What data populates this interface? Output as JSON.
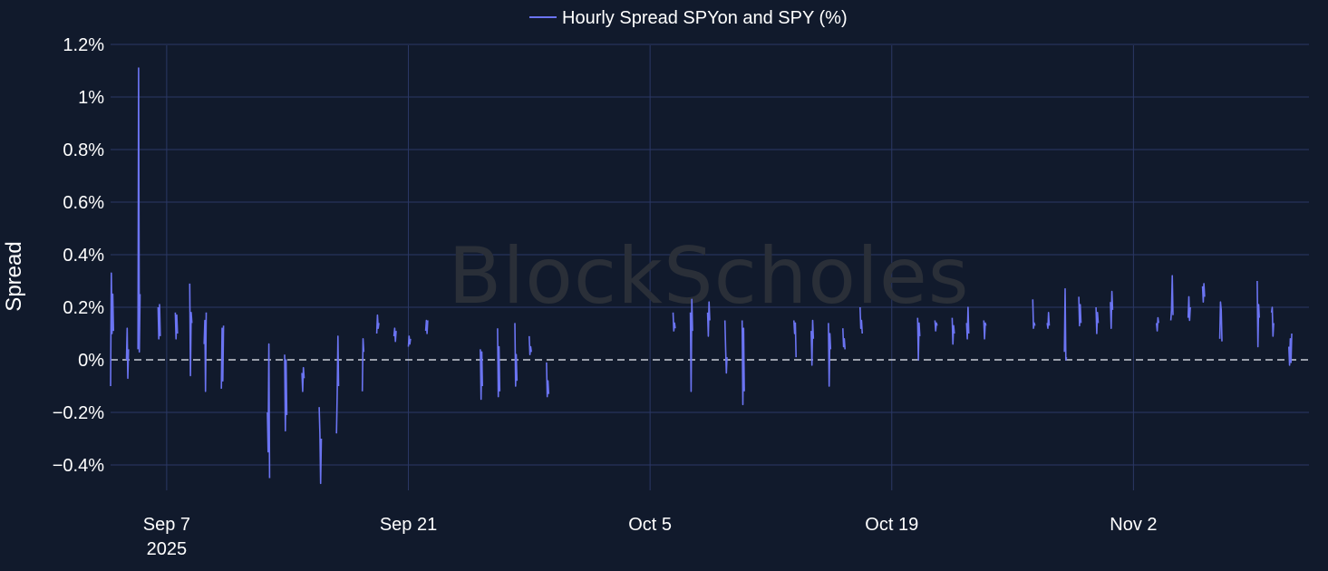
{
  "watermark": "BlockScholes",
  "chart_data": {
    "type": "line",
    "ylabel": "Spread",
    "ylim": [
      -0.5,
      1.2
    ],
    "y_ticks": [
      {
        "value": 1.2,
        "label": "1.2%"
      },
      {
        "value": 1.0,
        "label": "1%"
      },
      {
        "value": 0.8,
        "label": "0.8%"
      },
      {
        "value": 0.6,
        "label": "0.6%"
      },
      {
        "value": 0.4,
        "label": "0.4%"
      },
      {
        "value": 0.2,
        "label": "0.2%"
      },
      {
        "value": 0.0,
        "label": "0%"
      },
      {
        "value": -0.2,
        "label": "−0.2%"
      },
      {
        "value": -0.4,
        "label": "−0.4%"
      }
    ],
    "x_ticks": [
      {
        "date": "2025-09-07",
        "label": "Sep 7",
        "sublabel": "2025"
      },
      {
        "date": "2025-09-21",
        "label": "Sep 21",
        "sublabel": ""
      },
      {
        "date": "2025-10-05",
        "label": "Oct 5",
        "sublabel": ""
      },
      {
        "date": "2025-10-19",
        "label": "Oct 19",
        "sublabel": ""
      },
      {
        "date": "2025-11-02",
        "label": "Nov 2",
        "sublabel": ""
      }
    ],
    "xlim": [
      "2025-09-03T18:00",
      "2025-11-12T04:00"
    ],
    "grid": true,
    "zero_line": {
      "value": 0,
      "style": "dashed"
    },
    "legend_position": "top-center",
    "series": [
      {
        "name": "Hourly Spread SPYon and SPY (%)",
        "color": "#6b74f2",
        "segments": [
          [
            [
              "2025-09-03T18:00",
              -0.1
            ],
            [
              "2025-09-03T19:00",
              0.33
            ],
            [
              "2025-09-03T20:00",
              0.1
            ],
            [
              "2025-09-03T21:00",
              0.25
            ],
            [
              "2025-09-03T22:00",
              0.11
            ]
          ],
          [
            [
              "2025-09-04T16:00",
              0.0
            ],
            [
              "2025-09-04T17:00",
              0.12
            ],
            [
              "2025-09-04T18:00",
              -0.07
            ],
            [
              "2025-09-04T19:00",
              0.04
            ]
          ],
          [
            [
              "2025-09-05T08:00",
              0.04
            ],
            [
              "2025-09-05T09:00",
              1.11
            ],
            [
              "2025-09-05T10:00",
              0.03
            ],
            [
              "2025-09-05T11:00",
              0.25
            ]
          ],
          [
            [
              "2025-09-06T12:00",
              0.2
            ],
            [
              "2025-09-06T13:00",
              0.08
            ],
            [
              "2025-09-06T14:00",
              0.21
            ],
            [
              "2025-09-06T15:00",
              0.09
            ]
          ],
          [
            [
              "2025-09-07T12:00",
              0.18
            ],
            [
              "2025-09-07T13:00",
              0.08
            ],
            [
              "2025-09-07T14:00",
              0.17
            ],
            [
              "2025-09-07T15:00",
              0.1
            ]
          ],
          [
            [
              "2025-09-08T08:00",
              0.29
            ],
            [
              "2025-09-08T09:00",
              -0.06
            ],
            [
              "2025-09-08T10:00",
              0.18
            ],
            [
              "2025-09-08T11:00",
              0.14
            ]
          ],
          [
            [
              "2025-09-09T04:00",
              0.06
            ],
            [
              "2025-09-09T05:00",
              0.15
            ],
            [
              "2025-09-09T06:00",
              -0.12
            ],
            [
              "2025-09-09T07:00",
              0.18
            ]
          ],
          [
            [
              "2025-09-10T04:00",
              -0.11
            ],
            [
              "2025-09-10T05:00",
              0.12
            ],
            [
              "2025-09-10T06:00",
              -0.08
            ],
            [
              "2025-09-10T07:00",
              0.13
            ]
          ],
          [
            [
              "2025-09-12T20:00",
              -0.2
            ],
            [
              "2025-09-12T21:00",
              -0.35
            ],
            [
              "2025-09-12T22:00",
              0.06
            ],
            [
              "2025-09-12T23:00",
              -0.45
            ]
          ],
          [
            [
              "2025-09-13T20:00",
              0.02
            ],
            [
              "2025-09-13T21:00",
              -0.27
            ],
            [
              "2025-09-13T22:00",
              0.0
            ],
            [
              "2025-09-13T23:00",
              -0.21
            ]
          ],
          [
            [
              "2025-09-14T20:00",
              -0.05
            ],
            [
              "2025-09-14T21:00",
              -0.12
            ],
            [
              "2025-09-14T22:00",
              -0.03
            ],
            [
              "2025-09-14T23:00",
              -0.07
            ]
          ],
          [
            [
              "2025-09-15T20:00",
              -0.18
            ],
            [
              "2025-09-15T21:00",
              -0.28
            ],
            [
              "2025-09-15T22:00",
              -0.47
            ],
            [
              "2025-09-15T23:00",
              -0.3
            ]
          ],
          [
            [
              "2025-09-16T20:00",
              -0.28
            ],
            [
              "2025-09-16T21:00",
              -0.13
            ],
            [
              "2025-09-16T22:00",
              0.09
            ],
            [
              "2025-09-16T23:00",
              -0.1
            ]
          ],
          [
            [
              "2025-09-18T08:00",
              -0.12
            ],
            [
              "2025-09-18T09:00",
              0.08
            ],
            [
              "2025-09-18T10:00",
              0.03
            ]
          ],
          [
            [
              "2025-09-19T04:00",
              0.1
            ],
            [
              "2025-09-19T05:00",
              0.17
            ],
            [
              "2025-09-19T06:00",
              0.12
            ],
            [
              "2025-09-19T07:00",
              0.14
            ]
          ],
          [
            [
              "2025-09-20T04:00",
              0.09
            ],
            [
              "2025-09-20T05:00",
              0.12
            ],
            [
              "2025-09-20T06:00",
              0.07
            ],
            [
              "2025-09-20T07:00",
              0.11
            ]
          ],
          [
            [
              "2025-09-21T00:00",
              0.05
            ],
            [
              "2025-09-21T01:00",
              0.09
            ],
            [
              "2025-09-21T02:00",
              0.06
            ],
            [
              "2025-09-21T03:00",
              0.08
            ]
          ],
          [
            [
              "2025-09-22T00:00",
              0.11
            ],
            [
              "2025-09-22T01:00",
              0.15
            ],
            [
              "2025-09-22T02:00",
              0.1
            ],
            [
              "2025-09-22T03:00",
              0.15
            ]
          ],
          [
            [
              "2025-09-25T04:00",
              0.04
            ],
            [
              "2025-09-25T05:00",
              -0.15
            ],
            [
              "2025-09-25T06:00",
              0.03
            ],
            [
              "2025-09-25T07:00",
              -0.1
            ]
          ],
          [
            [
              "2025-09-26T04:00",
              0.12
            ],
            [
              "2025-09-26T05:00",
              -0.14
            ],
            [
              "2025-09-26T06:00",
              0.05
            ],
            [
              "2025-09-26T07:00",
              -0.12
            ]
          ],
          [
            [
              "2025-09-27T04:00",
              0.14
            ],
            [
              "2025-09-27T05:00",
              -0.1
            ],
            [
              "2025-09-27T06:00",
              0.02
            ],
            [
              "2025-09-27T07:00",
              -0.08
            ]
          ],
          [
            [
              "2025-09-28T00:00",
              0.09
            ],
            [
              "2025-09-28T01:00",
              0.02
            ],
            [
              "2025-09-28T02:00",
              0.05
            ],
            [
              "2025-09-28T03:00",
              0.03
            ]
          ],
          [
            [
              "2025-09-29T00:00",
              -0.01
            ],
            [
              "2025-09-29T01:00",
              -0.14
            ],
            [
              "2025-09-29T02:00",
              -0.08
            ],
            [
              "2025-09-29T03:00",
              -0.13
            ]
          ],
          [
            [
              "2025-10-06T08:00",
              0.18
            ],
            [
              "2025-10-06T09:00",
              0.11
            ],
            [
              "2025-10-06T10:00",
              0.14
            ],
            [
              "2025-10-06T11:00",
              0.12
            ]
          ],
          [
            [
              "2025-10-07T08:00",
              0.18
            ],
            [
              "2025-10-07T09:00",
              -0.12
            ],
            [
              "2025-10-07T10:00",
              0.23
            ],
            [
              "2025-10-07T11:00",
              0.11
            ]
          ],
          [
            [
              "2025-10-08T08:00",
              0.18
            ],
            [
              "2025-10-08T09:00",
              0.09
            ],
            [
              "2025-10-08T10:00",
              0.22
            ],
            [
              "2025-10-08T11:00",
              0.15
            ]
          ],
          [
            [
              "2025-10-09T08:00",
              0.15
            ],
            [
              "2025-10-09T09:00",
              0.04
            ],
            [
              "2025-10-09T10:00",
              -0.05
            ],
            [
              "2025-10-09T11:00",
              0.01
            ]
          ],
          [
            [
              "2025-10-10T08:00",
              0.15
            ],
            [
              "2025-10-10T09:00",
              -0.17
            ],
            [
              "2025-10-10T10:00",
              0.12
            ],
            [
              "2025-10-10T11:00",
              -0.12
            ]
          ],
          [
            [
              "2025-10-13T08:00",
              0.15
            ],
            [
              "2025-10-13T09:00",
              0.1
            ],
            [
              "2025-10-13T10:00",
              0.14
            ],
            [
              "2025-10-13T11:00",
              0.01
            ]
          ],
          [
            [
              "2025-10-14T08:00",
              0.11
            ],
            [
              "2025-10-14T09:00",
              -0.02
            ],
            [
              "2025-10-14T10:00",
              0.15
            ],
            [
              "2025-10-14T11:00",
              0.08
            ]
          ],
          [
            [
              "2025-10-15T08:00",
              0.14
            ],
            [
              "2025-10-15T09:00",
              -0.1
            ],
            [
              "2025-10-15T10:00",
              0.1
            ],
            [
              "2025-10-15T11:00",
              0.04
            ]
          ],
          [
            [
              "2025-10-16T04:00",
              0.12
            ],
            [
              "2025-10-16T05:00",
              0.05
            ],
            [
              "2025-10-16T06:00",
              0.08
            ],
            [
              "2025-10-16T07:00",
              0.04
            ]
          ],
          [
            [
              "2025-10-17T04:00",
              0.2
            ],
            [
              "2025-10-17T05:00",
              0.12
            ],
            [
              "2025-10-17T06:00",
              0.15
            ],
            [
              "2025-10-17T07:00",
              0.1
            ]
          ],
          [
            [
              "2025-10-20T12:00",
              0.16
            ],
            [
              "2025-10-20T13:00",
              0.0
            ],
            [
              "2025-10-20T14:00",
              0.14
            ],
            [
              "2025-10-20T15:00",
              0.09
            ]
          ],
          [
            [
              "2025-10-21T12:00",
              0.15
            ],
            [
              "2025-10-21T13:00",
              0.11
            ],
            [
              "2025-10-21T14:00",
              0.14
            ],
            [
              "2025-10-21T15:00",
              0.13
            ]
          ],
          [
            [
              "2025-10-22T12:00",
              0.16
            ],
            [
              "2025-10-22T13:00",
              0.06
            ],
            [
              "2025-10-22T14:00",
              0.13
            ],
            [
              "2025-10-22T15:00",
              0.1
            ]
          ],
          [
            [
              "2025-10-23T08:00",
              0.14
            ],
            [
              "2025-10-23T09:00",
              0.08
            ],
            [
              "2025-10-23T10:00",
              0.2
            ],
            [
              "2025-10-23T11:00",
              0.1
            ]
          ],
          [
            [
              "2025-10-24T08:00",
              0.15
            ],
            [
              "2025-10-24T09:00",
              0.08
            ],
            [
              "2025-10-24T10:00",
              0.14
            ],
            [
              "2025-10-24T11:00",
              0.13
            ]
          ],
          [
            [
              "2025-10-27T04:00",
              0.23
            ],
            [
              "2025-10-27T05:00",
              0.12
            ],
            [
              "2025-10-27T06:00",
              0.14
            ],
            [
              "2025-10-27T07:00",
              0.13
            ]
          ],
          [
            [
              "2025-10-28T00:00",
              0.14
            ],
            [
              "2025-10-28T01:00",
              0.12
            ],
            [
              "2025-10-28T02:00",
              0.18
            ],
            [
              "2025-10-28T03:00",
              0.13
            ]
          ],
          [
            [
              "2025-10-29T00:00",
              0.03
            ],
            [
              "2025-10-29T01:00",
              0.27
            ],
            [
              "2025-10-29T02:00",
              0.0
            ],
            [
              "2025-10-29T03:00",
              0.01
            ]
          ],
          [
            [
              "2025-10-29T20:00",
              0.24
            ],
            [
              "2025-10-29T21:00",
              0.13
            ],
            [
              "2025-10-29T22:00",
              0.21
            ],
            [
              "2025-10-29T23:00",
              0.14
            ]
          ],
          [
            [
              "2025-10-30T20:00",
              0.2
            ],
            [
              "2025-10-30T21:00",
              0.1
            ],
            [
              "2025-10-30T22:00",
              0.18
            ],
            [
              "2025-10-30T23:00",
              0.14
            ]
          ],
          [
            [
              "2025-10-31T16:00",
              0.22
            ],
            [
              "2025-10-31T17:00",
              0.12
            ],
            [
              "2025-10-31T18:00",
              0.26
            ],
            [
              "2025-10-31T19:00",
              0.19
            ]
          ],
          [
            [
              "2025-11-03T08:00",
              0.14
            ],
            [
              "2025-11-03T09:00",
              0.11
            ],
            [
              "2025-11-03T10:00",
              0.16
            ],
            [
              "2025-11-03T11:00",
              0.14
            ]
          ],
          [
            [
              "2025-11-04T04:00",
              0.15
            ],
            [
              "2025-11-04T05:00",
              0.19
            ],
            [
              "2025-11-04T06:00",
              0.32
            ],
            [
              "2025-11-04T07:00",
              0.17
            ]
          ],
          [
            [
              "2025-11-05T04:00",
              0.16
            ],
            [
              "2025-11-05T05:00",
              0.24
            ],
            [
              "2025-11-05T06:00",
              0.15
            ],
            [
              "2025-11-05T07:00",
              0.2
            ]
          ],
          [
            [
              "2025-11-06T00:00",
              0.28
            ],
            [
              "2025-11-06T01:00",
              0.22
            ],
            [
              "2025-11-06T02:00",
              0.29
            ],
            [
              "2025-11-06T03:00",
              0.24
            ]
          ],
          [
            [
              "2025-11-07T00:00",
              0.08
            ],
            [
              "2025-11-07T01:00",
              0.22
            ],
            [
              "2025-11-07T02:00",
              0.19
            ],
            [
              "2025-11-07T03:00",
              0.07
            ]
          ],
          [
            [
              "2025-11-09T04:00",
              0.3
            ],
            [
              "2025-11-09T05:00",
              0.05
            ],
            [
              "2025-11-09T06:00",
              0.21
            ],
            [
              "2025-11-09T07:00",
              0.16
            ]
          ],
          [
            [
              "2025-11-10T00:00",
              0.18
            ],
            [
              "2025-11-10T01:00",
              0.2
            ],
            [
              "2025-11-10T02:00",
              0.09
            ],
            [
              "2025-11-10T03:00",
              0.14
            ]
          ],
          [
            [
              "2025-11-11T00:00",
              0.05
            ],
            [
              "2025-11-11T01:00",
              -0.02
            ],
            [
              "2025-11-11T02:00",
              0.08
            ],
            [
              "2025-11-11T03:00",
              -0.01
            ],
            [
              "2025-11-11T04:00",
              0.1
            ]
          ]
        ]
      }
    ]
  }
}
